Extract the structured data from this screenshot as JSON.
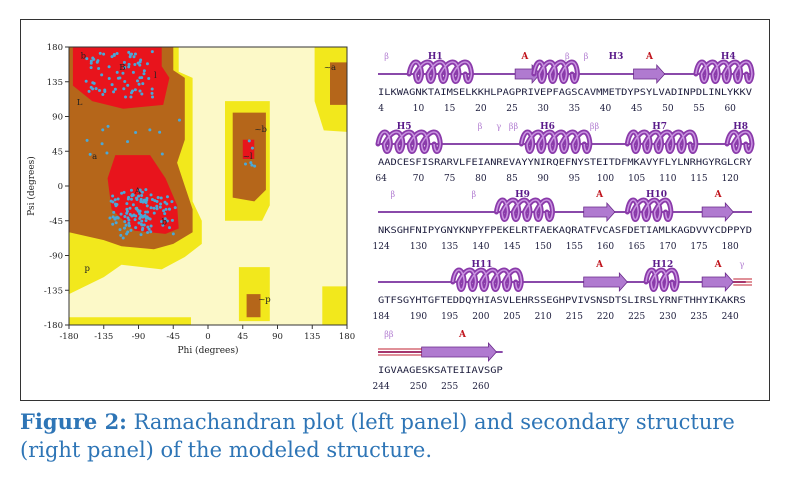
{
  "caption": {
    "label": "Figure 2:",
    "text": " Ramachandran plot (left panel) and secondary structure (right panel) of the modeled structure."
  },
  "ramachandran": {
    "xlabel": "Phi (degrees)",
    "ylabel": "Psi (degrees)",
    "xticks": [
      "-180",
      "-135",
      "-90",
      "-45",
      "0",
      "45",
      "90",
      "135",
      "180"
    ],
    "yticks": [
      "180",
      "135",
      "90",
      "45",
      "0",
      "-45",
      "-90",
      "-135",
      "-180"
    ],
    "region_labels": [
      "b",
      "B",
      "l",
      "L",
      "a",
      "A",
      "b",
      "p",
      "~b",
      "~l",
      "~p",
      "~a"
    ],
    "colors": {
      "core": "#e8141c",
      "allowed": "#b5661a",
      "generous": "#f2e81c",
      "disallowed": "#fcf9c8",
      "points": "#4aa8d8"
    }
  },
  "secondary_structure": {
    "rows": [
      {
        "sequence": "ILKWAGNKTAIMSELKKHLPAGPRIVEPFAGSCAVMMETDYPSYLVADINPDLINLYKKV",
        "numbers": [
          "4",
          "10",
          "15",
          "20",
          "25",
          "30",
          "35",
          "40",
          "45",
          "50",
          "55",
          "60"
        ],
        "labels": [
          {
            "text": "β",
            "kind": "turn"
          },
          {
            "text": "H1",
            "kind": "helix"
          },
          {
            "text": "A",
            "kind": "strand"
          },
          {
            "text": "β",
            "kind": "turn"
          },
          {
            "text": "β",
            "kind": "turn"
          },
          {
            "text": "H3",
            "kind": "helix"
          },
          {
            "text": "A",
            "kind": "strand"
          },
          {
            "text": "H4",
            "kind": "helix"
          }
        ]
      },
      {
        "sequence": "AADCESFISRARVLFEIANREVAYYNIRQEFNYSTEITDFMKAVYFLYLNRHGYRGLCRY",
        "numbers": [
          "64",
          "70",
          "75",
          "80",
          "85",
          "90",
          "95",
          "100",
          "105",
          "110",
          "115",
          "120"
        ],
        "labels": [
          {
            "text": "H5",
            "kind": "helix"
          },
          {
            "text": "β",
            "kind": "turn"
          },
          {
            "text": "γ",
            "kind": "turn"
          },
          {
            "text": "ββ",
            "kind": "turn"
          },
          {
            "text": "H6",
            "kind": "helix"
          },
          {
            "text": "ββ",
            "kind": "turn"
          },
          {
            "text": "H7",
            "kind": "helix"
          },
          {
            "text": "H8",
            "kind": "helix"
          }
        ]
      },
      {
        "sequence": "NKSGHFNIPYGNYKNPYFPEKELRTFAEKAQRATFVCASFDETIAMLKAGDVVYCDPPYD",
        "numbers": [
          "124",
          "130",
          "135",
          "140",
          "145",
          "150",
          "155",
          "160",
          "165",
          "170",
          "175",
          "180"
        ],
        "labels": [
          {
            "text": "β",
            "kind": "turn"
          },
          {
            "text": "β",
            "kind": "turn"
          },
          {
            "text": "H9",
            "kind": "helix"
          },
          {
            "text": "A",
            "kind": "strand"
          },
          {
            "text": "H10",
            "kind": "helix"
          },
          {
            "text": "A",
            "kind": "strand"
          }
        ]
      },
      {
        "sequence": "GTFSGYHTGFTEDDQYHIASVLEHRSSEGHPVIVSNSDTSLIRSLYRNFTHHYIKAKRS",
        "numbers": [
          "184",
          "190",
          "195",
          "200",
          "205",
          "210",
          "215",
          "220",
          "225",
          "230",
          "235",
          "240"
        ],
        "labels": [
          {
            "text": "H11",
            "kind": "helix"
          },
          {
            "text": "A",
            "kind": "strand"
          },
          {
            "text": "H12",
            "kind": "helix"
          },
          {
            "text": "A",
            "kind": "strand"
          },
          {
            "text": "γ",
            "kind": "turn"
          }
        ]
      },
      {
        "sequence": "IGVAAGESKSATEIIAVSGP",
        "numbers": [
          "244",
          "250",
          "255",
          "260"
        ],
        "labels": [
          {
            "text": "ββ",
            "kind": "turn"
          },
          {
            "text": "A",
            "kind": "strand"
          }
        ]
      }
    ]
  }
}
